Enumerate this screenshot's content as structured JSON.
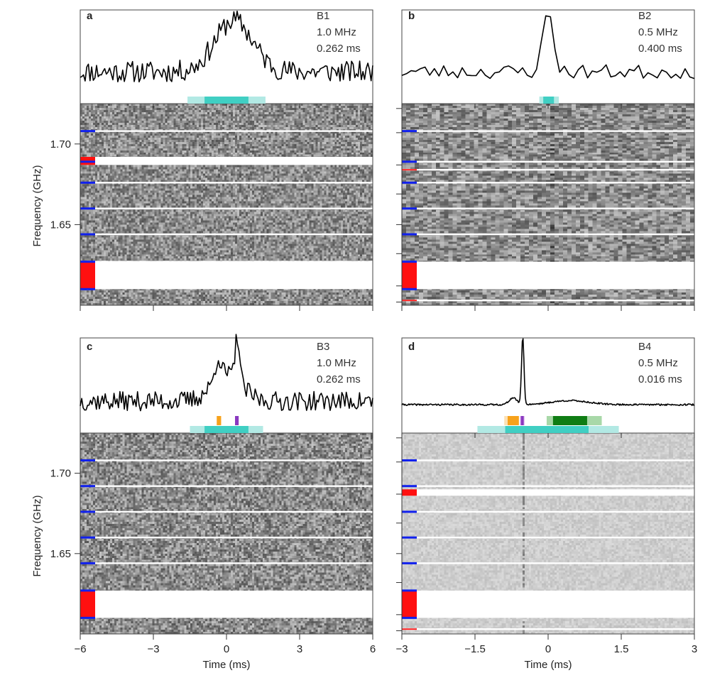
{
  "figure": {
    "time_label": "Time (ms)",
    "freq_label": "Frequency (GHz)"
  },
  "chart_data": [
    {
      "type": "line",
      "panel": "a",
      "burst": "B1",
      "resolution_freq": "1.0 MHz",
      "resolution_time": "0.262 ms",
      "xlim": [
        -6,
        6
      ],
      "xticks": [
        -6,
        -3,
        0,
        3,
        6
      ],
      "xtick_labels": [
        "-6",
        "-3",
        "0",
        "3",
        "6"
      ],
      "ylim_freq": [
        1.6,
        1.725
      ],
      "yticks_freq": [
        1.65,
        1.7
      ],
      "ytick_labels": [
        "1.65",
        "1.70"
      ],
      "show_ytick_labels": true,
      "show_xtick_labels": false,
      "profile": {
        "peak_center": 0.3,
        "peak_width": 1.8,
        "peak_amp": 0.85,
        "noise": 0.18,
        "spike": null,
        "seed": 11,
        "n": 180
      },
      "bars": [
        {
          "from": -1.6,
          "to": 1.6,
          "color": "#b2e9e4",
          "row": 0
        },
        {
          "from": -0.9,
          "to": 0.9,
          "color": "#40cfc3",
          "row": 0
        }
      ],
      "waterfall_shade": "dark",
      "flag_blue": [
        1.708,
        1.689,
        1.676,
        1.66,
        1.644,
        1.627,
        1.61
      ],
      "flag_red_bands": [
        [
          1.687,
          1.692
        ],
        [
          1.61,
          1.627
        ]
      ],
      "flag_red_lines": [],
      "gaps": [
        [
          1.687,
          1.692
        ],
        [
          1.61,
          1.627
        ]
      ],
      "white_lines": [
        1.708,
        1.676,
        1.66,
        1.644,
        1.627
      ]
    },
    {
      "type": "line",
      "panel": "b",
      "burst": "B2",
      "resolution_freq": "0.5 MHz",
      "resolution_time": "0.400 ms",
      "xlim": [
        -3,
        3
      ],
      "xticks": [
        -3,
        -1.5,
        0,
        1.5,
        3
      ],
      "xtick_labels": [
        "-3",
        "-1.5",
        "0",
        "1.5",
        "3"
      ],
      "ylim_freq": [
        1.6,
        1.725
      ],
      "yticks_freq": [
        1.602,
        1.612,
        1.632,
        1.65,
        1.669,
        1.687,
        1.707,
        1.722
      ],
      "ytick_labels": [],
      "show_ytick_labels": false,
      "show_xtick_labels": false,
      "profile": {
        "peak_center": 0.0,
        "peak_width": 0.25,
        "peak_amp": 1.0,
        "noise": 0.12,
        "spike": null,
        "seed": 23,
        "n": 64
      },
      "bars": [
        {
          "from": -0.18,
          "to": 0.22,
          "color": "#b2e9e4",
          "row": 0
        },
        {
          "from": -0.1,
          "to": 0.12,
          "color": "#40cfc3",
          "row": 0
        }
      ],
      "waterfall_shade": "coarse",
      "flag_blue": [
        1.708,
        1.689,
        1.676,
        1.66,
        1.644,
        1.627,
        1.61
      ],
      "flag_red_bands": [
        [
          1.61,
          1.627
        ]
      ],
      "flag_red_lines": [
        1.684,
        1.603
      ],
      "gaps": [
        [
          1.61,
          1.627
        ]
      ],
      "white_lines": [
        1.708,
        1.689,
        1.684,
        1.676,
        1.66,
        1.644,
        1.603
      ]
    },
    {
      "type": "line",
      "panel": "c",
      "burst": "B3",
      "resolution_freq": "1.0 MHz",
      "resolution_time": "0.262 ms",
      "xlim": [
        -6,
        6
      ],
      "xticks": [
        -6,
        -3,
        0,
        3,
        6
      ],
      "xtick_labels": [
        "-6",
        "-3",
        "0",
        "3",
        "6"
      ],
      "ylim_freq": [
        1.6,
        1.725
      ],
      "yticks_freq": [
        1.65,
        1.7
      ],
      "ytick_labels": [
        "1.65",
        "1.70"
      ],
      "show_ytick_labels": true,
      "show_xtick_labels": true,
      "profile": {
        "peak_center": 0.0,
        "peak_width": 1.4,
        "peak_amp": 0.45,
        "noise": 0.16,
        "spike": [
          {
            "at": 0.45,
            "amp": 0.75,
            "w": 0.09
          },
          {
            "at": -0.35,
            "amp": 0.35,
            "w": 0.12
          }
        ],
        "seed": 37,
        "n": 200
      },
      "bars": [
        {
          "from": -1.5,
          "to": 1.5,
          "color": "#b2e9e4",
          "row": 0
        },
        {
          "from": -0.9,
          "to": 0.9,
          "color": "#40cfc3",
          "row": 0
        },
        {
          "from": -0.4,
          "to": -0.22,
          "color": "#f7a21b",
          "row": 1
        },
        {
          "from": 0.35,
          "to": 0.5,
          "color": "#8a38c0",
          "row": 1
        }
      ],
      "waterfall_shade": "dark",
      "flag_blue": [
        1.708,
        1.692,
        1.676,
        1.66,
        1.644,
        1.627,
        1.61
      ],
      "flag_red_bands": [
        [
          1.61,
          1.627
        ]
      ],
      "flag_red_lines": [],
      "gaps": [
        [
          1.61,
          1.627
        ]
      ],
      "white_lines": [
        1.708,
        1.692,
        1.676,
        1.66,
        1.644
      ]
    },
    {
      "type": "line",
      "panel": "d",
      "burst": "B4",
      "resolution_freq": "0.5 MHz",
      "resolution_time": "0.016 ms",
      "xlim": [
        -3,
        3
      ],
      "xticks": [
        -3,
        -1.5,
        0,
        1.5,
        3
      ],
      "xtick_labels": [
        "-3",
        "-1.5",
        "0",
        "1.5",
        "3"
      ],
      "ylim_freq": [
        1.6,
        1.725
      ],
      "yticks_freq": [
        1.602,
        1.612,
        1.632,
        1.65,
        1.669,
        1.687,
        1.707,
        1.722
      ],
      "ytick_labels": [],
      "show_ytick_labels": false,
      "show_xtick_labels": true,
      "profile": {
        "peak_center": 0.45,
        "peak_width": 0.9,
        "peak_amp": 0.06,
        "noise": 0.012,
        "spike": [
          {
            "at": -0.52,
            "amp": 1.0,
            "w": 0.025
          },
          {
            "at": -0.72,
            "amp": 0.1,
            "w": 0.08
          }
        ],
        "seed": 41,
        "n": 380
      },
      "bars": [
        {
          "from": -1.45,
          "to": 1.45,
          "color": "#b2e9e4",
          "row": 0
        },
        {
          "from": -0.88,
          "to": 0.83,
          "color": "#40cfc3",
          "row": 0
        },
        {
          "from": -0.9,
          "to": -0.6,
          "color": "#fde1b4",
          "row": 1
        },
        {
          "from": -0.83,
          "to": -0.6,
          "color": "#f7a21b",
          "row": 1
        },
        {
          "from": -0.58,
          "to": -0.48,
          "color": "#e5c8f2",
          "row": 1
        },
        {
          "from": -0.56,
          "to": -0.5,
          "color": "#8a38c0",
          "row": 1
        },
        {
          "from": -0.03,
          "to": 1.1,
          "color": "#a8d8a8",
          "row": 1
        },
        {
          "from": 0.1,
          "to": 0.8,
          "color": "#0f7d14",
          "row": 1
        }
      ],
      "waterfall_shade": "light",
      "flag_blue": [
        1.708,
        1.692,
        1.676,
        1.66,
        1.644,
        1.627,
        1.61
      ],
      "flag_red_bands": [
        [
          1.686,
          1.69
        ],
        [
          1.61,
          1.627
        ]
      ],
      "flag_red_lines": [
        1.603
      ],
      "gaps": [
        [
          1.686,
          1.69
        ],
        [
          1.61,
          1.627
        ]
      ],
      "white_lines": [
        1.708,
        1.692,
        1.676,
        1.66,
        1.644,
        1.603
      ],
      "vertical_burst_at": -0.52
    }
  ]
}
